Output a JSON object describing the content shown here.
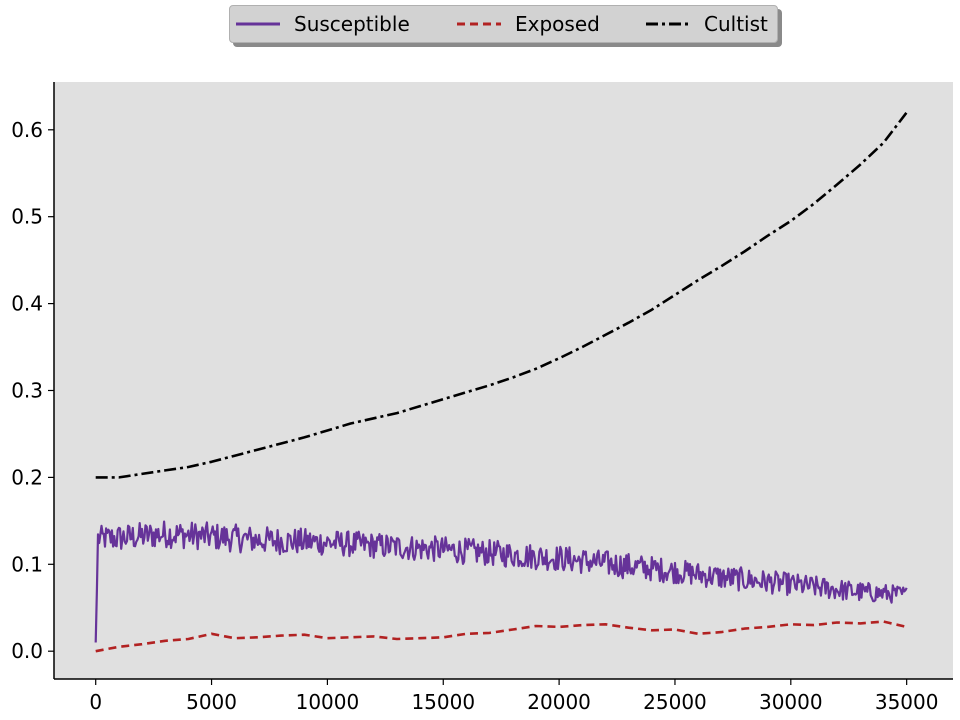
{
  "chart_data": {
    "type": "line",
    "title": "",
    "xlabel": "",
    "ylabel": "",
    "xlim": [
      -1800,
      37000
    ],
    "ylim": [
      -0.032,
      0.655
    ],
    "xticks": [
      0,
      5000,
      10000,
      15000,
      20000,
      25000,
      30000,
      35000
    ],
    "yticks": [
      0.0,
      0.1,
      0.2,
      0.3,
      0.4,
      0.5,
      0.6
    ],
    "grid": false,
    "legend_position": "top-center",
    "background": "#e0e0e0",
    "series": [
      {
        "name": "Susceptible",
        "color": "#663399",
        "style": "solid",
        "noisy": true,
        "x": [
          0,
          100,
          1000,
          3000,
          5000,
          7000,
          10000,
          13000,
          15000,
          17000,
          20000,
          23000,
          25000,
          27000,
          30000,
          33000,
          35000
        ],
        "y": [
          0.01,
          0.13,
          0.13,
          0.135,
          0.132,
          0.128,
          0.125,
          0.12,
          0.117,
          0.113,
          0.107,
          0.098,
          0.092,
          0.085,
          0.077,
          0.068,
          0.065
        ],
        "noise": [
          0.0,
          0.014,
          0.016,
          0.016,
          0.016,
          0.016,
          0.015,
          0.015,
          0.015,
          0.015,
          0.015,
          0.015,
          0.014,
          0.014,
          0.013,
          0.012,
          0.01
        ]
      },
      {
        "name": "Exposed",
        "color": "#b22222",
        "style": "dashed",
        "x": [
          0,
          1000,
          2000,
          3000,
          4000,
          5000,
          6000,
          7000,
          8000,
          9000,
          10000,
          11000,
          12000,
          13000,
          14000,
          15000,
          16000,
          17000,
          18000,
          19000,
          20000,
          21000,
          22000,
          23000,
          24000,
          25000,
          26000,
          27000,
          28000,
          29000,
          30000,
          31000,
          32000,
          33000,
          34000,
          35000
        ],
        "y": [
          0.0,
          0.005,
          0.008,
          0.012,
          0.014,
          0.02,
          0.015,
          0.016,
          0.018,
          0.019,
          0.015,
          0.016,
          0.017,
          0.014,
          0.015,
          0.016,
          0.02,
          0.021,
          0.025,
          0.029,
          0.028,
          0.03,
          0.031,
          0.027,
          0.024,
          0.025,
          0.02,
          0.022,
          0.026,
          0.028,
          0.031,
          0.03,
          0.033,
          0.032,
          0.034,
          0.028
        ]
      },
      {
        "name": "Cultist",
        "color": "#000000",
        "style": "dashdot",
        "x": [
          0,
          1000,
          2000,
          3000,
          4000,
          5000,
          6000,
          7000,
          8000,
          9000,
          10000,
          11000,
          12000,
          13000,
          14000,
          15000,
          16000,
          17000,
          18000,
          19000,
          20000,
          21000,
          22000,
          23000,
          24000,
          25000,
          26000,
          27000,
          28000,
          29000,
          30000,
          31000,
          32000,
          33000,
          34000,
          35000
        ],
        "y": [
          0.2,
          0.2,
          0.204,
          0.208,
          0.212,
          0.218,
          0.225,
          0.232,
          0.239,
          0.246,
          0.254,
          0.262,
          0.268,
          0.274,
          0.282,
          0.29,
          0.298,
          0.306,
          0.315,
          0.325,
          0.337,
          0.35,
          0.364,
          0.378,
          0.393,
          0.41,
          0.427,
          0.443,
          0.46,
          0.478,
          0.495,
          0.515,
          0.537,
          0.56,
          0.585,
          0.62
        ]
      }
    ]
  }
}
